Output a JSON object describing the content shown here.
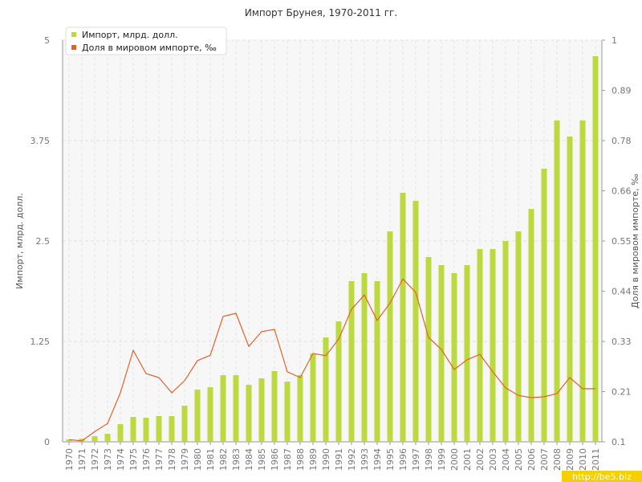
{
  "chart_data": {
    "type": "bar-line",
    "title": "Импорт Брунея, 1970-2011 гг.",
    "y_label": "Импорт, млрд. долл.",
    "y2_label": "Доля в мировом импорте, ‰",
    "watermark": "http://be5.biz",
    "categories": [
      "1970",
      "1971",
      "1972",
      "1973",
      "1974",
      "1975",
      "1976",
      "1977",
      "1978",
      "1979",
      "1980",
      "1981",
      "1982",
      "1983",
      "1984",
      "1985",
      "1986",
      "1987",
      "1988",
      "1989",
      "1990",
      "1991",
      "1992",
      "1993",
      "1994",
      "1995",
      "1996",
      "1997",
      "1998",
      "1999",
      "2000",
      "2001",
      "2002",
      "2003",
      "2004",
      "2005",
      "2006",
      "2007",
      "2008",
      "2009",
      "2010",
      "2011"
    ],
    "series": [
      {
        "name": "Импорт, млрд. долл.",
        "color": "#bcd93f",
        "type": "bar",
        "values": [
          0.03,
          0.04,
          0.07,
          0.1,
          0.22,
          0.31,
          0.3,
          0.32,
          0.32,
          0.45,
          0.65,
          0.68,
          0.83,
          0.83,
          0.71,
          0.79,
          0.88,
          0.75,
          0.83,
          1.1,
          1.3,
          1.5,
          2.0,
          2.1,
          2.0,
          2.62,
          3.1,
          3.0,
          2.3,
          2.2,
          2.1,
          2.2,
          2.4,
          2.4,
          2.5,
          2.62,
          2.9,
          3.4,
          4.0,
          3.8,
          4.0,
          4.8
        ]
      },
      {
        "name": "Доля в мировом импорте, ‰",
        "color": "#e0622a",
        "type": "line",
        "axis": "y2",
        "values": [
          0.105,
          0.102,
          0.123,
          0.141,
          0.21,
          0.305,
          0.253,
          0.244,
          0.21,
          0.237,
          0.282,
          0.294,
          0.381,
          0.388,
          0.314,
          0.347,
          0.352,
          0.257,
          0.244,
          0.298,
          0.293,
          0.33,
          0.397,
          0.429,
          0.372,
          0.411,
          0.465,
          0.435,
          0.334,
          0.307,
          0.262,
          0.284,
          0.296,
          0.257,
          0.221,
          0.204,
          0.199,
          0.201,
          0.208,
          0.244,
          0.219,
          0.219
        ]
      }
    ],
    "ylim": [
      0,
      5
    ],
    "yticks": [
      0,
      1.25,
      2.5,
      3.75,
      5
    ],
    "y2lim": [
      0.1,
      1
    ],
    "y2ticks": [
      0.1,
      {
        "value": 0.2125,
        "label": "0.21"
      },
      {
        "value": 0.325,
        "label": "0.33"
      },
      {
        "value": 0.4375,
        "label": "0.44"
      },
      0.55,
      {
        "value": 0.6625,
        "label": "0.66"
      },
      {
        "value": 0.775,
        "label": "0.78"
      },
      {
        "value": 0.8875,
        "label": "0.89"
      },
      1
    ],
    "grid": true
  }
}
